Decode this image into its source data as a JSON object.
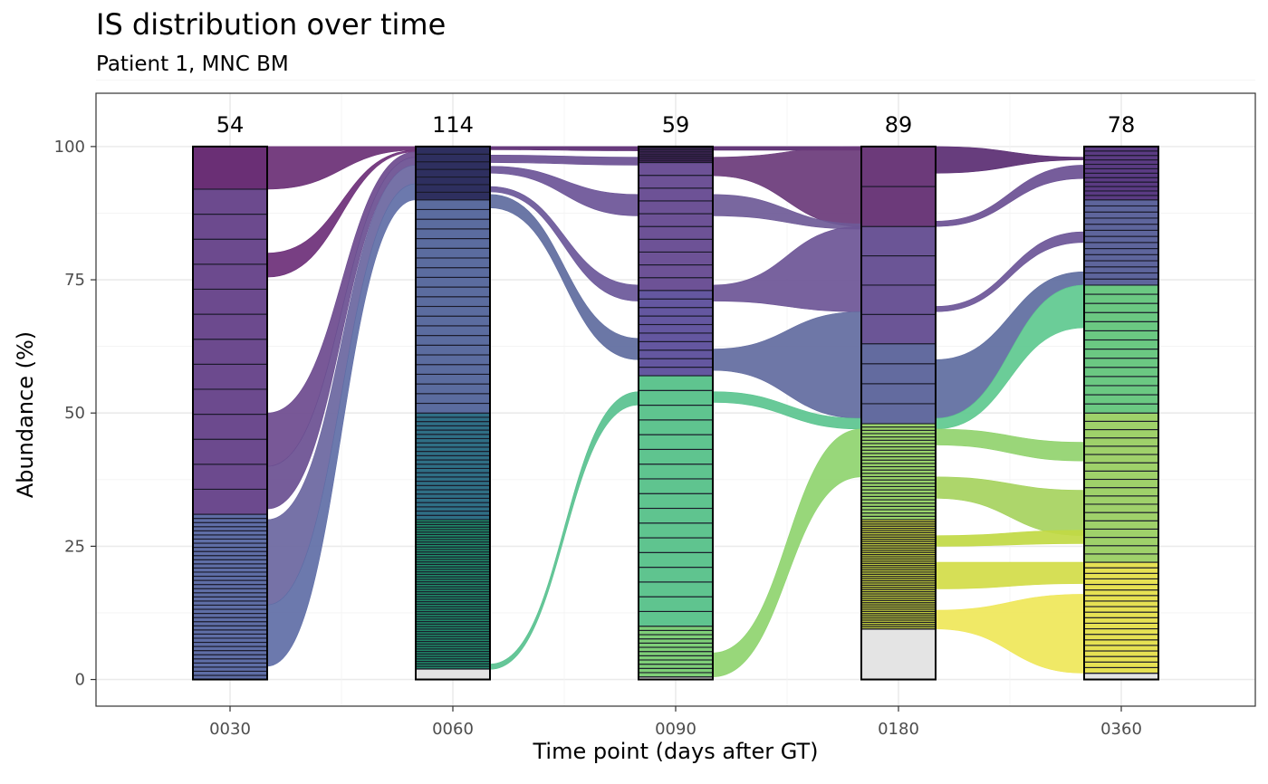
{
  "chart_data": {
    "type": "alluvial",
    "title": "IS distribution over time",
    "subtitle": "Patient 1, MNC BM",
    "xlabel": "Time point (days after GT)",
    "ylabel": "Abundance (%)",
    "ylim": [
      -5,
      110
    ],
    "yticks": [
      0,
      25,
      50,
      75,
      100
    ],
    "grid": true,
    "timepoints": [
      {
        "label": "0030",
        "count": "54",
        "other_pct": 0,
        "stacks": [
          {
            "from": 0,
            "to": 31,
            "n": 40,
            "color": "#5f6ea6"
          },
          {
            "from": 31,
            "to": 92,
            "n": 13,
            "color": "#6c4a8e"
          },
          {
            "from": 92,
            "to": 100,
            "n": 1,
            "color": "#6a2f75"
          }
        ]
      },
      {
        "label": "0060",
        "count": "114",
        "other_pct": 2,
        "stacks": [
          {
            "from": 2,
            "to": 30,
            "n": 60,
            "color": "#1f8a68"
          },
          {
            "from": 30,
            "to": 50,
            "n": 25,
            "color": "#2f6f85"
          },
          {
            "from": 50,
            "to": 90,
            "n": 22,
            "color": "#5b6c9f"
          },
          {
            "from": 90,
            "to": 100,
            "n": 7,
            "color": "#2e2f5f"
          }
        ]
      },
      {
        "label": "0090",
        "count": "59",
        "other_pct": 0.5,
        "stacks": [
          {
            "from": 0.5,
            "to": 10,
            "n": 12,
            "color": "#7fcf78"
          },
          {
            "from": 10,
            "to": 57,
            "n": 17,
            "color": "#5fc48f"
          },
          {
            "from": 57,
            "to": 73,
            "n": 10,
            "color": "#6457a0"
          },
          {
            "from": 73,
            "to": 97,
            "n": 10,
            "color": "#6d5296"
          },
          {
            "from": 97,
            "to": 100,
            "n": 10,
            "color": "#582a72"
          }
        ]
      },
      {
        "label": "0180",
        "count": "89",
        "other_pct": 9.5,
        "stacks": [
          {
            "from": 9.5,
            "to": 30,
            "n": 50,
            "color": "#c4cf3a"
          },
          {
            "from": 30,
            "to": 48,
            "n": 29,
            "color": "#9ad46a"
          },
          {
            "from": 48,
            "to": 63,
            "n": 4,
            "color": "#636b9f"
          },
          {
            "from": 63,
            "to": 85,
            "n": 4,
            "color": "#6b5596"
          },
          {
            "from": 85,
            "to": 100,
            "n": 2,
            "color": "#6c3a7a"
          }
        ]
      },
      {
        "label": "0360",
        "count": "78",
        "other_pct": 1.2,
        "stacks": [
          {
            "from": 1.2,
            "to": 22,
            "n": 20,
            "color": "#e6e153"
          },
          {
            "from": 22,
            "to": 50,
            "n": 18,
            "color": "#9fd16a"
          },
          {
            "from": 50,
            "to": 74,
            "n": 14,
            "color": "#6bc882"
          },
          {
            "from": 74,
            "to": 90,
            "n": 14,
            "color": "#5e659c"
          },
          {
            "from": 90,
            "to": 100,
            "n": 12,
            "color": "#5b3b83"
          }
        ]
      }
    ],
    "flows": [
      {
        "from": 0,
        "y0": [
          92,
          100
        ],
        "y1": [
          99.3,
          100
        ],
        "color": "#6a2f75"
      },
      {
        "from": 0,
        "y0": [
          75.5,
          80
        ],
        "y1": [
          99,
          99.3
        ],
        "color": "#6d2f78"
      },
      {
        "from": 0,
        "y0": [
          40,
          50
        ],
        "y1": [
          98,
          99
        ],
        "color": "#6c4a8e"
      },
      {
        "from": 0,
        "y0": [
          32,
          40
        ],
        "y1": [
          96.5,
          98
        ],
        "color": "#6a4f91"
      },
      {
        "from": 0,
        "y0": [
          14,
          30
        ],
        "y1": [
          93,
          96.5
        ],
        "color": "#6a66a0"
      },
      {
        "from": 0,
        "y0": [
          2.5,
          14
        ],
        "y1": [
          90,
          93
        ],
        "color": "#5f6ea6"
      },
      {
        "from": 1,
        "y0": [
          99.4,
          100
        ],
        "y1": [
          99.2,
          100
        ],
        "color": "#5b2a72"
      },
      {
        "from": 1,
        "y0": [
          97,
          98.4
        ],
        "y1": [
          96.5,
          98
        ],
        "color": "#6a4f93"
      },
      {
        "from": 1,
        "y0": [
          95,
          96.3
        ],
        "y1": [
          87,
          91
        ],
        "color": "#6b5497"
      },
      {
        "from": 1,
        "y0": [
          91.5,
          92.5
        ],
        "y1": [
          71,
          74
        ],
        "color": "#6a5799"
      },
      {
        "from": 1,
        "y0": [
          88.5,
          91
        ],
        "y1": [
          60,
          64
        ],
        "color": "#5e6b9e"
      },
      {
        "from": 1,
        "y0": [
          1.9,
          2.9
        ],
        "y1": [
          51.5,
          54
        ],
        "color": "#58c18f"
      },
      {
        "from": 2,
        "y0": [
          99.3,
          100
        ],
        "y1": [
          99.3,
          100
        ],
        "color": "#58296f"
      },
      {
        "from": 2,
        "y0": [
          94.5,
          98
        ],
        "y1": [
          85,
          100
        ],
        "color": "#6a3a7a"
      },
      {
        "from": 2,
        "y0": [
          87,
          91
        ],
        "y1": [
          84.5,
          85.5
        ],
        "color": "#6e5a97"
      },
      {
        "from": 2,
        "y0": [
          71,
          74
        ],
        "y1": [
          69,
          85
        ],
        "color": "#6d5596"
      },
      {
        "from": 2,
        "y0": [
          58,
          62
        ],
        "y1": [
          49,
          69
        ],
        "color": "#626b9f"
      },
      {
        "from": 2,
        "y0": [
          52,
          54
        ],
        "y1": [
          47,
          49
        ],
        "color": "#5bc48f"
      },
      {
        "from": 2,
        "y0": [
          0.5,
          5
        ],
        "y1": [
          38,
          47
        ],
        "color": "#8fd46f"
      },
      {
        "from": 3,
        "y0": [
          95,
          100
        ],
        "y1": [
          97.5,
          98
        ],
        "color": "#5a2d72"
      },
      {
        "from": 3,
        "y0": [
          85,
          86
        ],
        "y1": [
          94,
          96.5
        ],
        "color": "#6a4f93"
      },
      {
        "from": 3,
        "y0": [
          69,
          70
        ],
        "y1": [
          82,
          84
        ],
        "color": "#6b5597"
      },
      {
        "from": 3,
        "y0": [
          49,
          60
        ],
        "y1": [
          74,
          76.5
        ],
        "color": "#5e6c9f"
      },
      {
        "from": 3,
        "y0": [
          47,
          49
        ],
        "y1": [
          66,
          74
        ],
        "color": "#5ec98f"
      },
      {
        "from": 3,
        "y0": [
          44,
          47
        ],
        "y1": [
          41,
          44.5
        ],
        "color": "#91d36e"
      },
      {
        "from": 3,
        "y0": [
          34,
          38
        ],
        "y1": [
          27,
          35.5
        ],
        "color": "#a6d35e"
      },
      {
        "from": 3,
        "y0": [
          25,
          27
        ],
        "y1": [
          25.5,
          28
        ],
        "color": "#c1d944"
      },
      {
        "from": 3,
        "y0": [
          17,
          22
        ],
        "y1": [
          18,
          22
        ],
        "color": "#d2dc48"
      },
      {
        "from": 3,
        "y0": [
          9.5,
          13
        ],
        "y1": [
          1.2,
          16
        ],
        "color": "#efe759"
      }
    ]
  }
}
